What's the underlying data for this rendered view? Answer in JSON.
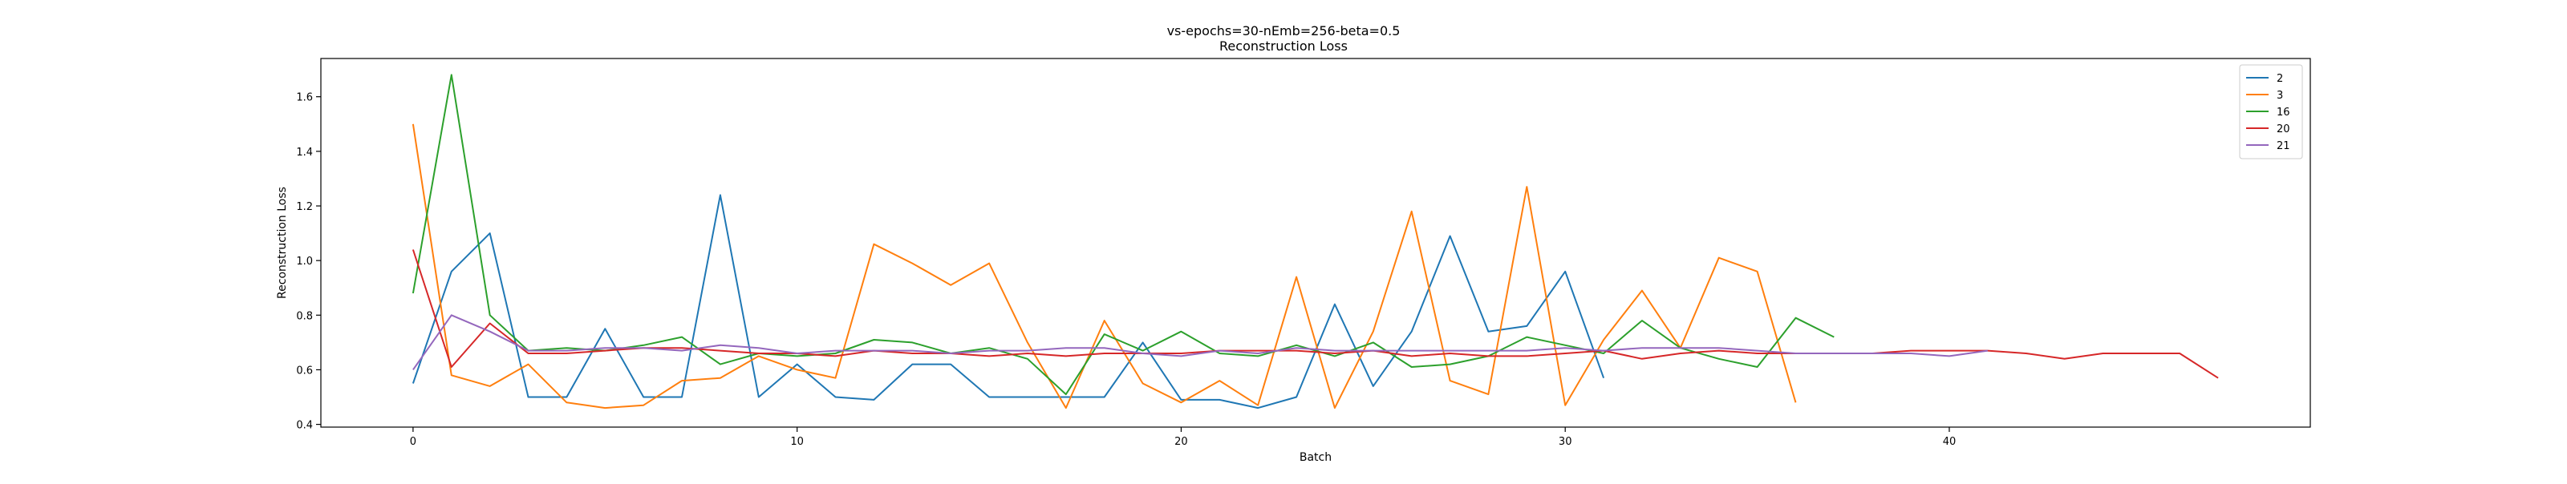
{
  "chart_data": {
    "type": "line",
    "title": "vs-epochs=30-nEmb=256-beta=0.5",
    "subtitle": "Reconstruction Loss",
    "xlabel": "Batch",
    "ylabel": "Reconstruction Loss",
    "xlim": [
      -2.4,
      49.4
    ],
    "ylim": [
      0.39,
      1.74
    ],
    "xticks": [
      0,
      10,
      20,
      30,
      40
    ],
    "yticks": [
      0.4,
      0.6,
      0.8,
      1.0,
      1.2,
      1.4,
      1.6
    ],
    "grid": false,
    "legend_position": "top-right",
    "series": [
      {
        "name": "2",
        "color": "#1f77b4",
        "x": [
          0,
          1,
          2,
          3,
          4,
          5,
          6,
          7,
          8,
          9,
          10,
          11,
          12,
          13,
          14,
          15,
          16,
          17,
          18,
          19,
          20,
          21,
          22,
          23,
          24,
          25,
          26,
          27,
          28,
          29,
          30,
          31
        ],
        "values": [
          0.55,
          0.96,
          1.1,
          0.5,
          0.5,
          0.75,
          0.5,
          0.5,
          1.24,
          0.5,
          0.62,
          0.5,
          0.49,
          0.62,
          0.62,
          0.5,
          0.5,
          0.5,
          0.5,
          0.7,
          0.49,
          0.49,
          0.46,
          0.5,
          0.84,
          0.54,
          0.74,
          1.09,
          0.74,
          0.76,
          0.96,
          0.57
        ]
      },
      {
        "name": "3",
        "color": "#ff7f0e",
        "x": [
          0,
          1,
          2,
          3,
          4,
          5,
          6,
          7,
          8,
          9,
          10,
          11,
          12,
          13,
          14,
          15,
          16,
          17,
          18,
          19,
          20,
          21,
          22,
          23,
          24,
          25,
          26,
          27,
          28,
          29,
          30,
          31,
          32,
          33,
          34,
          35,
          36
        ],
        "values": [
          1.5,
          0.58,
          0.54,
          0.62,
          0.48,
          0.46,
          0.47,
          0.56,
          0.57,
          0.65,
          0.6,
          0.57,
          1.06,
          0.99,
          0.91,
          0.99,
          0.7,
          0.46,
          0.78,
          0.55,
          0.48,
          0.56,
          0.47,
          0.94,
          0.46,
          0.74,
          1.18,
          0.56,
          0.51,
          1.27,
          0.47,
          0.71,
          0.89,
          0.68,
          1.01,
          0.96,
          0.48
        ]
      },
      {
        "name": "16",
        "color": "#2ca02c",
        "x": [
          0,
          1,
          2,
          3,
          4,
          5,
          6,
          7,
          8,
          9,
          10,
          11,
          12,
          13,
          14,
          15,
          16,
          17,
          18,
          19,
          20,
          21,
          22,
          23,
          24,
          25,
          26,
          27,
          28,
          29,
          30,
          31,
          32,
          33,
          34,
          35,
          36,
          37
        ],
        "values": [
          0.88,
          1.68,
          0.8,
          0.67,
          0.68,
          0.67,
          0.69,
          0.72,
          0.62,
          0.66,
          0.65,
          0.66,
          0.71,
          0.7,
          0.66,
          0.68,
          0.64,
          0.51,
          0.73,
          0.67,
          0.74,
          0.66,
          0.65,
          0.69,
          0.65,
          0.7,
          0.61,
          0.62,
          0.65,
          0.72,
          0.69,
          0.66,
          0.78,
          0.68,
          0.64,
          0.61,
          0.79,
          0.72
        ]
      },
      {
        "name": "20",
        "color": "#d62728",
        "x": [
          0,
          1,
          2,
          3,
          4,
          5,
          6,
          7,
          8,
          9,
          10,
          11,
          12,
          13,
          14,
          15,
          16,
          17,
          18,
          19,
          20,
          21,
          22,
          23,
          24,
          25,
          26,
          27,
          28,
          29,
          30,
          31,
          32,
          33,
          34,
          35,
          36,
          37,
          38,
          39,
          40,
          41,
          42,
          43,
          44,
          45,
          46,
          47
        ],
        "values": [
          1.04,
          0.61,
          0.77,
          0.66,
          0.66,
          0.67,
          0.68,
          0.68,
          0.67,
          0.66,
          0.66,
          0.65,
          0.67,
          0.66,
          0.66,
          0.65,
          0.66,
          0.65,
          0.66,
          0.66,
          0.66,
          0.67,
          0.67,
          0.67,
          0.66,
          0.67,
          0.65,
          0.66,
          0.65,
          0.65,
          0.66,
          0.67,
          0.64,
          0.66,
          0.67,
          0.66,
          0.66,
          0.66,
          0.66,
          0.67,
          0.67,
          0.67,
          0.66,
          0.64,
          0.66,
          0.66,
          0.66,
          0.57
        ]
      },
      {
        "name": "21",
        "color": "#9467bd",
        "x": [
          0,
          1,
          2,
          3,
          4,
          5,
          6,
          7,
          8,
          9,
          10,
          11,
          12,
          13,
          14,
          15,
          16,
          17,
          18,
          19,
          20,
          21,
          22,
          23,
          24,
          25,
          26,
          27,
          28,
          29,
          30,
          31,
          32,
          33,
          34,
          35,
          36,
          37,
          38,
          39,
          40,
          41
        ],
        "values": [
          0.6,
          0.8,
          0.74,
          0.67,
          0.67,
          0.68,
          0.68,
          0.67,
          0.69,
          0.68,
          0.66,
          0.67,
          0.67,
          0.67,
          0.66,
          0.67,
          0.67,
          0.68,
          0.68,
          0.66,
          0.65,
          0.67,
          0.66,
          0.68,
          0.67,
          0.67,
          0.67,
          0.67,
          0.67,
          0.67,
          0.68,
          0.67,
          0.68,
          0.68,
          0.68,
          0.67,
          0.66,
          0.66,
          0.66,
          0.66,
          0.65,
          0.67
        ]
      }
    ]
  }
}
